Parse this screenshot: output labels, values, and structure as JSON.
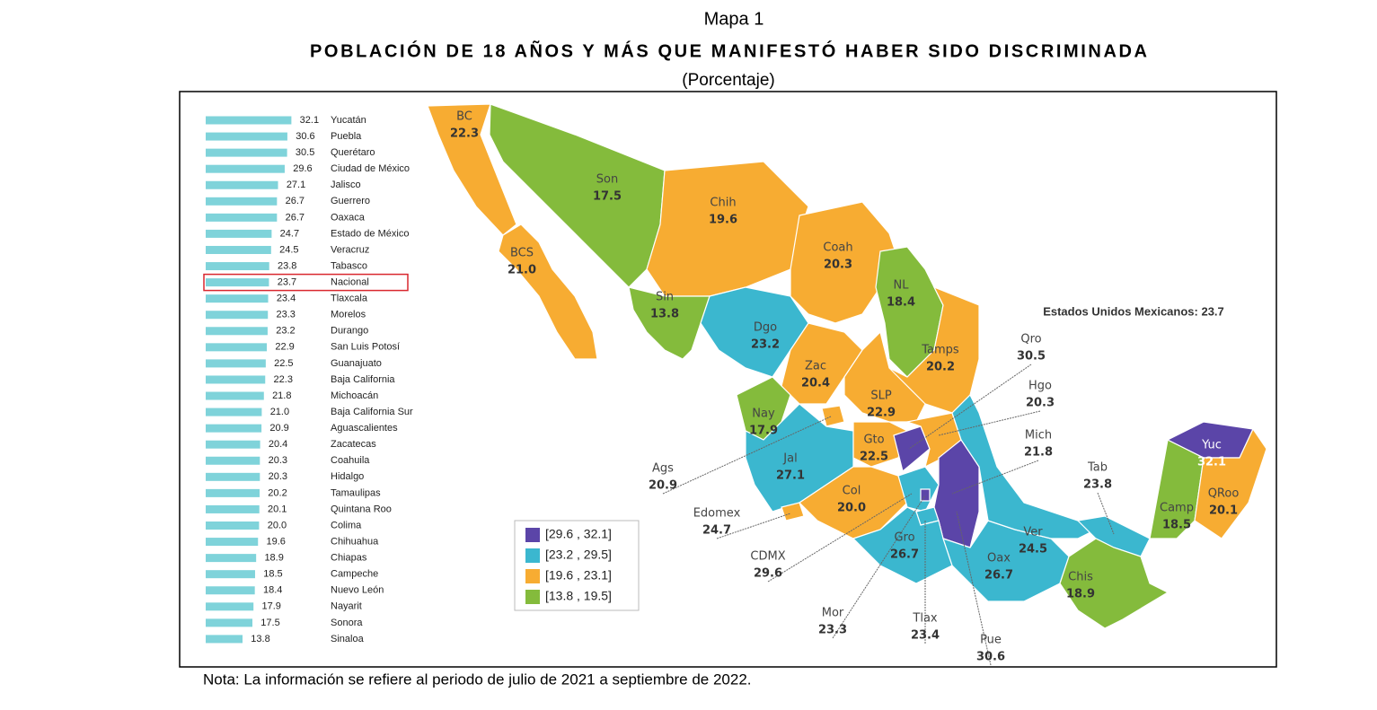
{
  "header": {
    "label": "Mapa 1",
    "title": "POBLACIÓN DE 18 AÑOS Y MÁS QUE MANIFESTÓ HABER SIDO DISCRIMINADA",
    "subtitle": "(Porcentaje)"
  },
  "chart_data": {
    "type": "bar",
    "orientation": "horizontal",
    "color": "#7fd3da",
    "xlim": [
      0,
      35
    ],
    "categories": [
      "Yucatán",
      "Puebla",
      "Querétaro",
      "Ciudad de México",
      "Jalisco",
      "Guerrero",
      "Oaxaca",
      "Estado de México",
      "Veracruz",
      "Tabasco",
      "Nacional",
      "Tlaxcala",
      "Morelos",
      "Durango",
      "San Luis Potosí",
      "Guanajuato",
      "Baja California",
      "Michoacán",
      "Baja California Sur",
      "Aguascalientes",
      "Zacatecas",
      "Coahuila",
      "Hidalgo",
      "Tamaulipas",
      "Quintana Roo",
      "Colima",
      "Chihuahua",
      "Chiapas",
      "Campeche",
      "Nuevo León",
      "Nayarit",
      "Sonora",
      "Sinaloa"
    ],
    "values": [
      32.1,
      30.6,
      30.5,
      29.6,
      27.1,
      26.7,
      26.7,
      24.7,
      24.5,
      23.8,
      23.7,
      23.4,
      23.3,
      23.2,
      22.9,
      22.5,
      22.3,
      21.8,
      21.0,
      20.9,
      20.4,
      20.3,
      20.3,
      20.2,
      20.1,
      20.0,
      19.6,
      18.9,
      18.5,
      18.4,
      17.9,
      17.5,
      13.8
    ],
    "value_labels": [
      "32.1",
      "30.6",
      "30.5",
      "29.6",
      "27.1",
      "26.7",
      "26.7",
      "24.7",
      "24.5",
      "23.8",
      "23.7",
      "23.4",
      "23.3",
      "23.2",
      "22.9",
      "22.5",
      "22.3",
      "21.8",
      "21.0",
      "20.9",
      "20.4",
      "20.3",
      "20.3",
      "20.2",
      "20.1",
      "20.0",
      "19.6",
      "18.9",
      "18.5",
      "18.4",
      "17.9",
      "17.5",
      "13.8"
    ],
    "highlighted_category": "Nacional"
  },
  "map": {
    "national_label": "Estados Unidos Mexicanos: 23.7",
    "legend": [
      {
        "label": "[29.6 , 32.1]",
        "color": "#5b45a8"
      },
      {
        "label": "[23.2 , 29.5]",
        "color": "#3bb7cf"
      },
      {
        "label": "[19.6 , 23.1]",
        "color": "#f7ac32"
      },
      {
        "label": "[13.8 , 19.5]",
        "color": "#84bb3c"
      }
    ],
    "states": [
      {
        "abbr": "BC",
        "value": "22.3",
        "bin": 2
      },
      {
        "abbr": "BCS",
        "value": "21.0",
        "bin": 2
      },
      {
        "abbr": "Son",
        "value": "17.5",
        "bin": 3
      },
      {
        "abbr": "Chih",
        "value": "19.6",
        "bin": 2
      },
      {
        "abbr": "Coah",
        "value": "20.3",
        "bin": 2
      },
      {
        "abbr": "NL",
        "value": "18.4",
        "bin": 3
      },
      {
        "abbr": "Tamps",
        "value": "20.2",
        "bin": 2
      },
      {
        "abbr": "Sin",
        "value": "13.8",
        "bin": 3
      },
      {
        "abbr": "Dgo",
        "value": "23.2",
        "bin": 1
      },
      {
        "abbr": "Zac",
        "value": "20.4",
        "bin": 2
      },
      {
        "abbr": "SLP",
        "value": "22.9",
        "bin": 2
      },
      {
        "abbr": "Nay",
        "value": "17.9",
        "bin": 3
      },
      {
        "abbr": "Ags",
        "value": "20.9",
        "bin": 2
      },
      {
        "abbr": "Jal",
        "value": "27.1",
        "bin": 1
      },
      {
        "abbr": "Gto",
        "value": "22.5",
        "bin": 2
      },
      {
        "abbr": "Qro",
        "value": "30.5",
        "bin": 0
      },
      {
        "abbr": "Hgo",
        "value": "20.3",
        "bin": 2
      },
      {
        "abbr": "Mich",
        "value": "21.8",
        "bin": 2
      },
      {
        "abbr": "Col",
        "value": "20.0",
        "bin": 2
      },
      {
        "abbr": "Edomex",
        "value": "24.7",
        "bin": 1
      },
      {
        "abbr": "CDMX",
        "value": "29.6",
        "bin": 0
      },
      {
        "abbr": "Mor",
        "value": "23.3",
        "bin": 1
      },
      {
        "abbr": "Tlax",
        "value": "23.4",
        "bin": 1
      },
      {
        "abbr": "Pue",
        "value": "30.6",
        "bin": 0
      },
      {
        "abbr": "Gro",
        "value": "26.7",
        "bin": 1
      },
      {
        "abbr": "Oax",
        "value": "26.7",
        "bin": 1
      },
      {
        "abbr": "Ver",
        "value": "24.5",
        "bin": 1
      },
      {
        "abbr": "Tab",
        "value": "23.8",
        "bin": 1
      },
      {
        "abbr": "Chis",
        "value": "18.9",
        "bin": 3
      },
      {
        "abbr": "Camp",
        "value": "18.5",
        "bin": 3
      },
      {
        "abbr": "Yuc",
        "value": "32.1",
        "bin": 0
      },
      {
        "abbr": "QRoo",
        "value": "20.1",
        "bin": 2
      }
    ]
  },
  "note": "Nota: La información se refiere al periodo de julio de 2021 a septiembre de 2022."
}
